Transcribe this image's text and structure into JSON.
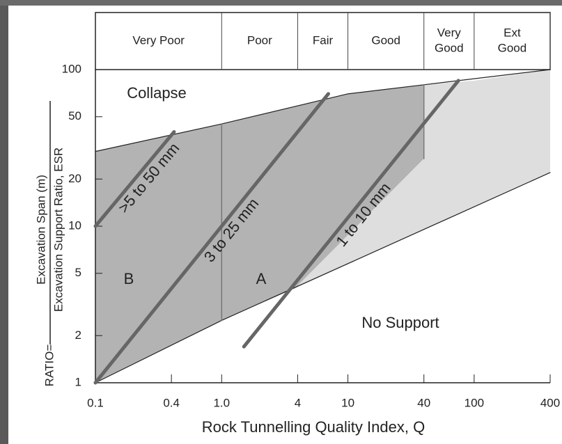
{
  "chart_data": {
    "type": "line",
    "x_label": "Rock Tunnelling Quality Index, Q",
    "y_label_prefix": "RATIO=",
    "y_label_numerator": "Excavation Span (m)",
    "y_label_denominator": "Excavation Support Ratio, ESR",
    "xscale": "log",
    "yscale": "log",
    "xlim": [
      0.1,
      400
    ],
    "ylim": [
      1,
      100
    ],
    "xticks": [
      0.1,
      0.4,
      {
        "value": 1,
        "label": "1.0"
      },
      4,
      10,
      40,
      100,
      400
    ],
    "yticks": [
      1,
      2,
      5,
      10,
      20,
      50,
      100
    ],
    "quality_classes": [
      {
        "label": [
          "Very Poor"
        ],
        "from": 0.1,
        "to": 1
      },
      {
        "label": [
          "Poor"
        ],
        "from": 1,
        "to": 4
      },
      {
        "label": [
          "Fair"
        ],
        "from": 4,
        "to": 10
      },
      {
        "label": [
          "Good"
        ],
        "from": 10,
        "to": 40
      },
      {
        "label": [
          "Very",
          "Good"
        ],
        "from": 40,
        "to": 100
      },
      {
        "label": [
          "Ext",
          "Good"
        ],
        "from": 100,
        "to": 400
      }
    ],
    "regions": [
      {
        "color": "#b3b3b3",
        "x": [
          0.1,
          1,
          10,
          40,
          40,
          3.8,
          1,
          0.1
        ],
        "y": [
          30,
          45,
          70,
          80,
          27,
          4,
          2.5,
          1
        ]
      },
      {
        "color": "#dedede",
        "x": [
          40,
          100,
          400,
          400,
          3.8,
          40
        ],
        "y": [
          80,
          85,
          100,
          22,
          4,
          27
        ]
      }
    ],
    "series": [
      {
        "color": "#222222",
        "width": 1.2,
        "x": [
          0.1,
          1,
          10,
          40,
          400
        ],
        "y": [
          30,
          45,
          70,
          80,
          100
        ]
      },
      {
        "color": "#222222",
        "width": 1.2,
        "x": [
          0.1,
          1,
          400
        ],
        "y": [
          1,
          2.5,
          22
        ]
      },
      {
        "color": "#777777",
        "width": 1.5,
        "x": [
          1,
          1
        ],
        "y": [
          45,
          2.5
        ]
      },
      {
        "color": "#777777",
        "width": 1.5,
        "x": [
          40,
          40
        ],
        "y": [
          80,
          27
        ]
      },
      {
        "name": ">5 to 50 mm",
        "color": "#666666",
        "width": 5,
        "x": [
          0.1,
          0.42
        ],
        "y": [
          10,
          40
        ]
      },
      {
        "name": "3 to 25 mm",
        "color": "#666666",
        "width": 5,
        "x": [
          0.1,
          7
        ],
        "y": [
          1,
          70
        ]
      },
      {
        "name": "1 to 10 mm",
        "color": "#666666",
        "width": 5,
        "x": [
          1.5,
          75
        ],
        "y": [
          1.7,
          85
        ]
      }
    ],
    "annotations": [
      "Collapse",
      "B",
      "A",
      "No Support"
    ]
  }
}
